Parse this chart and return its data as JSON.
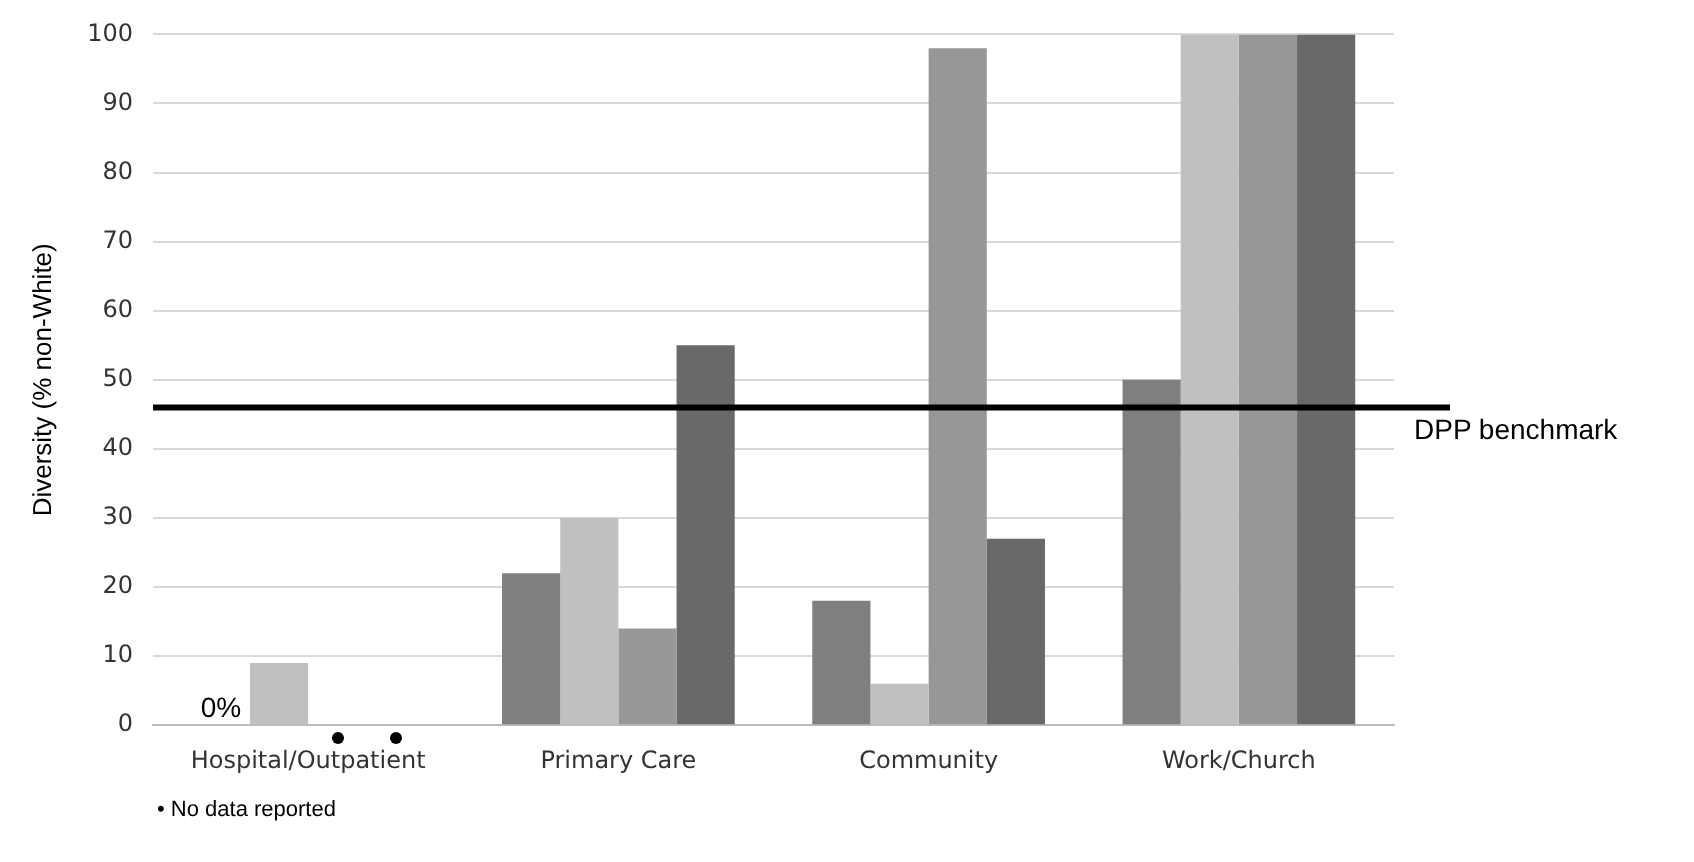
{
  "chart_data": {
    "type": "bar",
    "ylabel": "Diversity (% non-White)",
    "categories": [
      "Hospital/Outpatient",
      "Primary Care",
      "Community",
      "Work/Church"
    ],
    "series": [
      {
        "color": "#7f7f7f",
        "values": [
          0,
          22,
          18,
          50
        ]
      },
      {
        "color": "#c0c0c0",
        "values": [
          9,
          30,
          6,
          100
        ]
      },
      {
        "color": "#979797",
        "values": [
          null,
          14,
          98,
          100
        ]
      },
      {
        "color": "#696969",
        "values": [
          null,
          55,
          27,
          100
        ]
      }
    ],
    "ylim": [
      0,
      100
    ],
    "yticks": [
      0,
      10,
      20,
      30,
      40,
      50,
      60,
      70,
      80,
      90,
      100
    ],
    "grid": "y",
    "legend": false,
    "ref_lines": [
      {
        "axis": "y",
        "value": 46,
        "label": "DPP benchmark",
        "color": "#000000"
      }
    ],
    "annotations": [
      {
        "text": "0%",
        "x": "Hospital/Outpatient",
        "y": 0
      },
      "• No data reported"
    ]
  }
}
